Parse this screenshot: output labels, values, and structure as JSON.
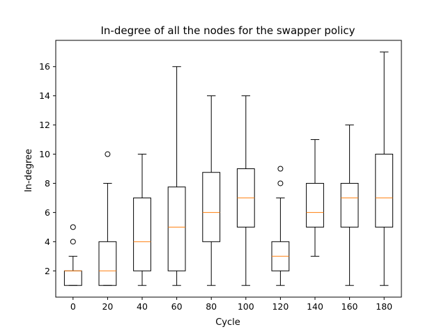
{
  "chart_data": {
    "type": "box",
    "title": "In-degree of all the nodes for the swapper policy",
    "xlabel": "Cycle",
    "ylabel": "In-degree",
    "categories": [
      "0",
      "20",
      "40",
      "60",
      "80",
      "100",
      "120",
      "140",
      "160",
      "180"
    ],
    "ylim": [
      0.2,
      17.8
    ],
    "yticks": [
      2,
      4,
      6,
      8,
      10,
      12,
      14,
      16
    ],
    "grid": false,
    "colors": {
      "box": "#000000",
      "median": "#ff7f0e"
    },
    "boxes": [
      {
        "label": "0",
        "whisker_low": 1,
        "q1": 1,
        "median": 2,
        "q3": 2,
        "whisker_high": 3,
        "outliers": [
          4,
          5
        ]
      },
      {
        "label": "20",
        "whisker_low": 1,
        "q1": 1,
        "median": 2,
        "q3": 4,
        "whisker_high": 8,
        "outliers": [
          10
        ]
      },
      {
        "label": "40",
        "whisker_low": 1,
        "q1": 2,
        "median": 4,
        "q3": 7,
        "whisker_high": 10,
        "outliers": []
      },
      {
        "label": "60",
        "whisker_low": 1,
        "q1": 2,
        "median": 5,
        "q3": 7.75,
        "whisker_high": 16,
        "outliers": []
      },
      {
        "label": "80",
        "whisker_low": 1,
        "q1": 4,
        "median": 6,
        "q3": 8.75,
        "whisker_high": 14,
        "outliers": []
      },
      {
        "label": "100",
        "whisker_low": 1,
        "q1": 5,
        "median": 7,
        "q3": 9,
        "whisker_high": 14,
        "outliers": []
      },
      {
        "label": "120",
        "whisker_low": 1,
        "q1": 2,
        "median": 3,
        "q3": 4,
        "whisker_high": 7,
        "outliers": [
          8,
          9
        ]
      },
      {
        "label": "140",
        "whisker_low": 3,
        "q1": 5,
        "median": 6,
        "q3": 8,
        "whisker_high": 11,
        "outliers": []
      },
      {
        "label": "160",
        "whisker_low": 1,
        "q1": 5,
        "median": 7,
        "q3": 8,
        "whisker_high": 12,
        "outliers": []
      },
      {
        "label": "180",
        "whisker_low": 1,
        "q1": 5,
        "median": 7,
        "q3": 10,
        "whisker_high": 17,
        "outliers": []
      }
    ]
  }
}
